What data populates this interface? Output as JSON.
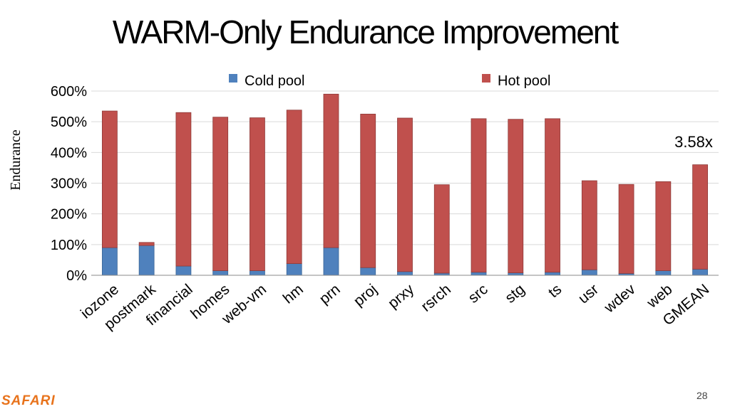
{
  "slide": {
    "title": "WARM-Only Endurance Improvement",
    "brand": "SAFARI",
    "page_number": "28"
  },
  "colors": {
    "cold": "#4f81bd",
    "hot": "#c0504d",
    "brand": "#e8731c"
  },
  "chart_data": {
    "type": "bar",
    "stacked": true,
    "title": "",
    "xlabel": "",
    "ylabel": "Endurance",
    "ylim": [
      0,
      600
    ],
    "yticks": [
      "0%",
      "100%",
      "200%",
      "300%",
      "400%",
      "500%",
      "600%"
    ],
    "grid": true,
    "legend_position": "top",
    "categories": [
      "iozone",
      "postmark",
      "financial",
      "homes",
      "web-vm",
      "hm",
      "prn",
      "proj",
      "prxy",
      "rsrch",
      "src",
      "stg",
      "ts",
      "usr",
      "wdev",
      "web",
      "GMEAN"
    ],
    "series": [
      {
        "name": "Cold pool",
        "values": [
          90,
          97,
          30,
          15,
          15,
          38,
          90,
          25,
          12,
          7,
          10,
          8,
          10,
          18,
          6,
          15,
          20
        ]
      },
      {
        "name": "Hot pool",
        "values": [
          445,
          10,
          500,
          500,
          498,
          500,
          500,
          500,
          500,
          288,
          500,
          500,
          500,
          290,
          290,
          290,
          340
        ]
      }
    ],
    "annotations": [
      {
        "text": "3.58x",
        "category": "GMEAN"
      }
    ]
  }
}
